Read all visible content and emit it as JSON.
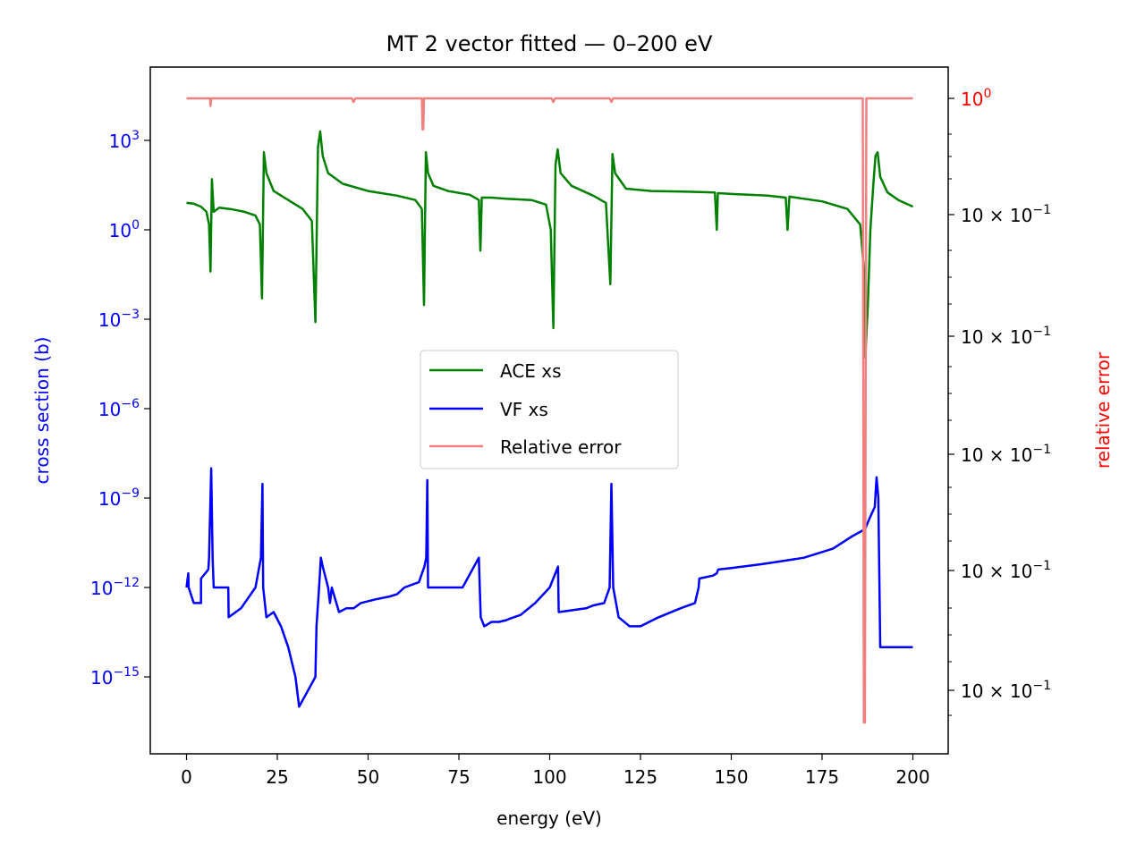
{
  "chart_data": {
    "type": "line",
    "title": "MT 2 vector fitted — 0–200 eV",
    "xlabel": "energy (eV)",
    "ylabel_left": "cross section (b)",
    "ylabel_right": "relative error",
    "x_ticks": [
      "0",
      "25",
      "50",
      "75",
      "100",
      "125",
      "150",
      "175",
      "200"
    ],
    "y_left_scale": "log",
    "y_left_ticks": [
      {
        "base": "10",
        "exp": "3"
      },
      {
        "base": "10",
        "exp": "0"
      },
      {
        "base": "10",
        "exp": "−3"
      },
      {
        "base": "10",
        "exp": "−6"
      },
      {
        "base": "10",
        "exp": "−9"
      },
      {
        "base": "10",
        "exp": "−12"
      },
      {
        "base": "10",
        "exp": "−15"
      }
    ],
    "y_right_scale": "log",
    "y_right_ticks": [
      {
        "mant": "",
        "base": "10",
        "exp": "0"
      },
      {
        "mant": "10 × ",
        "base": "10",
        "exp": "−1"
      },
      {
        "mant": "10 × ",
        "base": "10",
        "exp": "−1"
      },
      {
        "mant": "10 × ",
        "base": "10",
        "exp": "−1"
      },
      {
        "mant": "10 × ",
        "base": "10",
        "exp": "−1"
      },
      {
        "mant": "10 × ",
        "base": "10",
        "exp": "−1"
      }
    ],
    "legend_position": "center",
    "grid": false,
    "colors": {
      "ace": "#008000",
      "vf": "#0000ff",
      "err": "#f08080",
      "left_axis": "#0000ff",
      "right_axis": "#ff0000"
    },
    "series": [
      {
        "name": "ACE xs",
        "x": [
          0,
          2,
          4,
          5.5,
          6.2,
          6.6,
          7,
          7.5,
          9,
          12,
          16,
          19,
          20.2,
          20.8,
          21.3,
          22,
          24,
          28,
          32,
          34.5,
          35.5,
          36.2,
          36.8,
          37.5,
          39,
          43,
          50,
          58,
          63,
          64.8,
          65.4,
          65.9,
          66.5,
          68,
          72,
          78,
          80.5,
          80.9,
          81.3,
          84,
          88,
          95,
          99,
          100.3,
          101,
          101.6,
          102.2,
          103,
          106,
          112,
          115.5,
          116.7,
          117.3,
          118,
          121,
          128,
          138,
          145.5,
          146,
          146.3,
          150,
          160,
          165,
          165.5,
          166,
          175,
          182,
          185.5,
          186.5,
          186.9,
          187.6,
          188.3,
          189.1,
          189.7,
          190.3,
          191,
          193,
          196,
          200
        ],
        "y": [
          8,
          7.5,
          6,
          4,
          1.5,
          0.04,
          50,
          4,
          5.5,
          5,
          4,
          3,
          1.5,
          0.005,
          400,
          80,
          20,
          10,
          5,
          2,
          0.0008,
          600,
          2000,
          300,
          80,
          35,
          20,
          14,
          10,
          5,
          0.003,
          400,
          80,
          30,
          20,
          15,
          10,
          0.2,
          12,
          12,
          11,
          10,
          7,
          1,
          0.0005,
          150,
          500,
          80,
          30,
          14,
          8,
          0.015,
          350,
          80,
          24,
          20,
          19,
          18,
          1,
          17,
          16,
          14,
          12,
          1,
          13,
          9,
          5,
          1.5,
          0.05,
          5e-05,
          0.003,
          1,
          30,
          300,
          400,
          60,
          18,
          10,
          6
        ]
      },
      {
        "name": "VF xs",
        "x": [
          0,
          0.5,
          0.6,
          2,
          4,
          4,
          6,
          6.2,
          6.8,
          7.2,
          7.5,
          11.5,
          11.6,
          15,
          19,
          20.5,
          20.9,
          21.1,
          22,
          24,
          26,
          28,
          30,
          31,
          35.5,
          35.8,
          36.5,
          37,
          37.5,
          39,
          39.5,
          40,
          42,
          44,
          46,
          48,
          52,
          56,
          58,
          60,
          64,
          65.5,
          66,
          66.3,
          66.5,
          70,
          76,
          80.5,
          81,
          82,
          84,
          86,
          88,
          89,
          92,
          96,
          100,
          102,
          102.3,
          102.5,
          110,
          112,
          115,
          116.5,
          117,
          117.5,
          119,
          122,
          125,
          130,
          136,
          140,
          141,
          141.2,
          145,
          146,
          146.4,
          150,
          158,
          165,
          170,
          178,
          183,
          186,
          187,
          188,
          189.5,
          190,
          190.5,
          191,
          200
        ],
        "y": [
          1e-12,
          3e-12,
          1e-12,
          3e-13,
          3e-13,
          2e-12,
          4e-12,
          1e-11,
          1e-08,
          1e-11,
          1e-12,
          1e-12,
          1e-13,
          2e-13,
          1e-12,
          1e-11,
          3e-09,
          1e-12,
          1e-13,
          1.5e-13,
          5e-14,
          1e-14,
          1e-15,
          1e-16,
          1e-15,
          5e-14,
          1e-12,
          1e-11,
          5e-12,
          1e-12,
          3e-13,
          1e-12,
          1.5e-13,
          2e-13,
          2e-13,
          3e-13,
          4e-13,
          5e-13,
          6e-13,
          1e-12,
          1.5e-12,
          5e-12,
          1e-11,
          4e-09,
          1e-12,
          1e-12,
          1e-12,
          1e-11,
          1e-13,
          5e-14,
          7e-14,
          7e-14,
          8e-14,
          9e-14,
          1.2e-13,
          3e-13,
          1e-12,
          4e-12,
          5e-12,
          1.5e-13,
          2e-13,
          2.5e-13,
          3e-13,
          1e-12,
          3e-09,
          1e-12,
          1e-13,
          5e-14,
          5e-14,
          1e-13,
          2e-13,
          3e-13,
          1e-12,
          2e-12,
          2.5e-12,
          3e-12,
          4e-12,
          4.5e-12,
          6e-12,
          8e-12,
          1e-11,
          2e-11,
          5e-11,
          8e-11,
          1e-10,
          2e-10,
          5e-10,
          5e-09,
          1e-09,
          1e-14,
          1e-14
        ]
      },
      {
        "name": "Relative error",
        "x": [
          0,
          6.5,
          6.6,
          6.8,
          37.5,
          45.5,
          46,
          46.5,
          64.8,
          65,
          65.2,
          65.4,
          100.5,
          101,
          101.5,
          116.5,
          117,
          117.5,
          186.2,
          186.5,
          186.8,
          187.2,
          200
        ],
        "y": [
          1,
          1,
          0.8,
          1,
          1,
          1,
          0.9,
          1,
          1,
          0.4,
          0.4,
          1,
          1,
          0.9,
          1,
          1,
          0.9,
          1,
          1,
          1e-08,
          1e-08,
          1,
          1
        ]
      }
    ]
  }
}
